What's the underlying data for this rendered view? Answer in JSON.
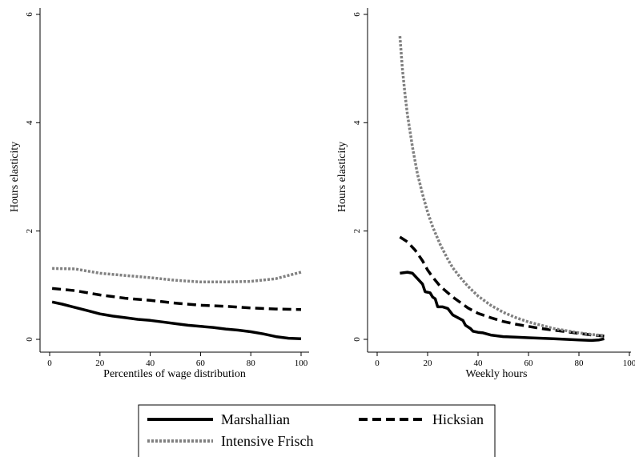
{
  "chart_data": [
    {
      "type": "line",
      "title": "",
      "xlabel": "Percentiles of wage distribution",
      "ylabel": "Hours elasticity",
      "xlim": [
        0,
        100
      ],
      "ylim": [
        0,
        6
      ],
      "xticks": [
        "0",
        "20",
        "40",
        "60",
        "80",
        "100"
      ],
      "yticks": [
        "0",
        "2",
        "4",
        "6"
      ],
      "grid": false,
      "series": [
        {
          "name": "Marshallian",
          "color": "#000000",
          "style": "solid",
          "points": [
            [
              1,
              0.69
            ],
            [
              5,
              0.65
            ],
            [
              10,
              0.59
            ],
            [
              15,
              0.53
            ],
            [
              20,
              0.47
            ],
            [
              25,
              0.43
            ],
            [
              30,
              0.4
            ],
            [
              35,
              0.37
            ],
            [
              40,
              0.35
            ],
            [
              45,
              0.32
            ],
            [
              50,
              0.29
            ],
            [
              55,
              0.26
            ],
            [
              60,
              0.24
            ],
            [
              65,
              0.22
            ],
            [
              70,
              0.19
            ],
            [
              75,
              0.17
            ],
            [
              80,
              0.14
            ],
            [
              85,
              0.1
            ],
            [
              90,
              0.05
            ],
            [
              95,
              0.02
            ],
            [
              100,
              0.01
            ]
          ]
        },
        {
          "name": "Hicksian",
          "color": "#000000",
          "style": "dashed",
          "points": [
            [
              1,
              0.94
            ],
            [
              10,
              0.9
            ],
            [
              20,
              0.82
            ],
            [
              30,
              0.76
            ],
            [
              40,
              0.72
            ],
            [
              50,
              0.67
            ],
            [
              60,
              0.63
            ],
            [
              70,
              0.61
            ],
            [
              80,
              0.58
            ],
            [
              90,
              0.56
            ],
            [
              100,
              0.55
            ]
          ]
        },
        {
          "name": "Intensive Frisch",
          "color": "#808080",
          "style": "dotted",
          "points": [
            [
              1,
              1.31
            ],
            [
              10,
              1.3
            ],
            [
              20,
              1.22
            ],
            [
              30,
              1.18
            ],
            [
              40,
              1.14
            ],
            [
              50,
              1.09
            ],
            [
              60,
              1.06
            ],
            [
              70,
              1.06
            ],
            [
              80,
              1.07
            ],
            [
              90,
              1.12
            ],
            [
              100,
              1.24
            ]
          ]
        }
      ]
    },
    {
      "type": "line",
      "title": "",
      "xlabel": "Weekly hours",
      "ylabel": "Hours elasticity",
      "xlim": [
        0,
        100
      ],
      "ylim": [
        0,
        6
      ],
      "xticks": [
        "0",
        "20",
        "40",
        "60",
        "80",
        "100"
      ],
      "yticks": [
        "0",
        "2",
        "4",
        "6"
      ],
      "grid": false,
      "series": [
        {
          "name": "Marshallian",
          "color": "#000000",
          "style": "solid",
          "points": [
            [
              9,
              1.22
            ],
            [
              12,
              1.24
            ],
            [
              14,
              1.22
            ],
            [
              16,
              1.12
            ],
            [
              18,
              1.02
            ],
            [
              19,
              0.88
            ],
            [
              21,
              0.86
            ],
            [
              22,
              0.78
            ],
            [
              23,
              0.75
            ],
            [
              24,
              0.6
            ],
            [
              26,
              0.6
            ],
            [
              28,
              0.57
            ],
            [
              30,
              0.45
            ],
            [
              32,
              0.4
            ],
            [
              34,
              0.35
            ],
            [
              35,
              0.26
            ],
            [
              37,
              0.2
            ],
            [
              38,
              0.15
            ],
            [
              40,
              0.13
            ],
            [
              42,
              0.12
            ],
            [
              45,
              0.08
            ],
            [
              50,
              0.05
            ],
            [
              55,
              0.04
            ],
            [
              60,
              0.03
            ],
            [
              65,
              0.02
            ],
            [
              70,
              0.01
            ],
            [
              75,
              0.0
            ],
            [
              80,
              -0.01
            ],
            [
              85,
              -0.02
            ],
            [
              88,
              -0.01
            ],
            [
              90,
              0.01
            ]
          ]
        },
        {
          "name": "Hicksian",
          "color": "#000000",
          "style": "dashed",
          "points": [
            [
              9,
              1.89
            ],
            [
              12,
              1.8
            ],
            [
              15,
              1.65
            ],
            [
              18,
              1.45
            ],
            [
              20,
              1.28
            ],
            [
              22,
              1.15
            ],
            [
              25,
              0.98
            ],
            [
              28,
              0.86
            ],
            [
              30,
              0.78
            ],
            [
              33,
              0.68
            ],
            [
              36,
              0.58
            ],
            [
              40,
              0.48
            ],
            [
              45,
              0.4
            ],
            [
              50,
              0.33
            ],
            [
              55,
              0.28
            ],
            [
              60,
              0.24
            ],
            [
              65,
              0.2
            ],
            [
              70,
              0.17
            ],
            [
              75,
              0.14
            ],
            [
              80,
              0.11
            ],
            [
              85,
              0.08
            ],
            [
              90,
              0.06
            ]
          ]
        },
        {
          "name": "Intensive Frisch",
          "color": "#808080",
          "style": "dotted",
          "points": [
            [
              9,
              5.6
            ],
            [
              10,
              5.0
            ],
            [
              11,
              4.55
            ],
            [
              12,
              4.15
            ],
            [
              14,
              3.55
            ],
            [
              16,
              3.05
            ],
            [
              18,
              2.68
            ],
            [
              20,
              2.35
            ],
            [
              22,
              2.08
            ],
            [
              25,
              1.75
            ],
            [
              28,
              1.48
            ],
            [
              30,
              1.32
            ],
            [
              33,
              1.14
            ],
            [
              36,
              0.98
            ],
            [
              40,
              0.8
            ],
            [
              45,
              0.63
            ],
            [
              50,
              0.5
            ],
            [
              55,
              0.4
            ],
            [
              60,
              0.32
            ],
            [
              65,
              0.26
            ],
            [
              70,
              0.2
            ],
            [
              75,
              0.16
            ],
            [
              80,
              0.12
            ],
            [
              85,
              0.09
            ],
            [
              90,
              0.07
            ]
          ]
        }
      ]
    }
  ],
  "legend": {
    "placement": "bottom",
    "entries": [
      {
        "label": "Marshallian",
        "color": "#000000",
        "style": "solid"
      },
      {
        "label": "Hicksian",
        "color": "#000000",
        "style": "dashed"
      },
      {
        "label": "Intensive Frisch",
        "color": "#808080",
        "style": "dotted"
      }
    ]
  }
}
